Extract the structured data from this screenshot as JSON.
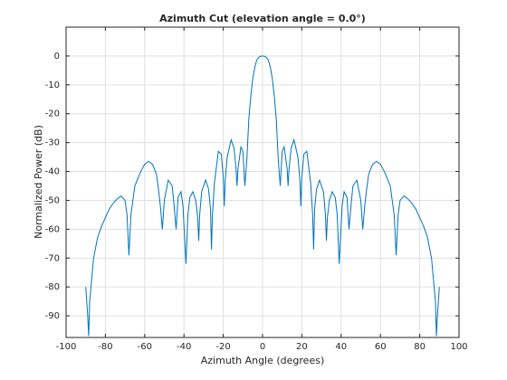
{
  "chart_data": {
    "type": "line",
    "title": "Azimuth Cut (elevation angle = 0.0°)",
    "x_label": "Azimuth Angle (degrees)",
    "y_label": "Normalized Power (dB)",
    "xlim": [
      -100,
      100
    ],
    "ylim": [
      -97.5,
      10
    ],
    "xticks": [
      -100,
      -80,
      -60,
      -40,
      -20,
      0,
      20,
      40,
      60,
      80,
      100
    ],
    "yticks": [
      -90,
      -80,
      -70,
      -60,
      -50,
      -40,
      -30,
      -20,
      -10,
      0
    ],
    "grid": true,
    "x": [
      -90,
      -89,
      -88.5,
      -88,
      -86,
      -84,
      -82,
      -80,
      -78,
      -76,
      -74,
      -72,
      -70,
      -69,
      -68,
      -67,
      -65,
      -62,
      -60,
      -58,
      -56,
      -54,
      -53,
      -52,
      -51,
      -50,
      -48,
      -46,
      -45,
      -44,
      -43,
      -41.5,
      -40.5,
      -39,
      -38,
      -37,
      -35.5,
      -34,
      -33,
      -32.5,
      -32,
      -31,
      -29,
      -27.5,
      -26.5,
      -26,
      -25.5,
      -24.5,
      -22.5,
      -21,
      -20,
      -19.5,
      -19,
      -18,
      -16,
      -14.5,
      -13.5,
      -13,
      -12.5,
      -11,
      -10,
      -9,
      -8,
      -7,
      -6,
      -5,
      -4,
      -3,
      -2,
      -1,
      0,
      1,
      2,
      3,
      4,
      5,
      6,
      7,
      8,
      9,
      10,
      11,
      12.5,
      13,
      13.5,
      14.5,
      16,
      18,
      19,
      19.5,
      20,
      21,
      22.5,
      24.5,
      25.5,
      26,
      26.5,
      27.5,
      29,
      31,
      32,
      32.5,
      33,
      34,
      35.5,
      37,
      38,
      39,
      40.5,
      41.5,
      43,
      44,
      45,
      46,
      48,
      50,
      51,
      52,
      53,
      54,
      56,
      58,
      60,
      62,
      65,
      67,
      68,
      69,
      70,
      72,
      74,
      76,
      78,
      80,
      82,
      84,
      86,
      88,
      88.5,
      89,
      90
    ],
    "series": [
      {
        "name": "Azimuth cut",
        "color": "#0072bd",
        "values": [
          -80,
          -90,
          -97,
          -85,
          -70,
          -63,
          -59,
          -56,
          -53,
          -51,
          -49.5,
          -48.5,
          -50,
          -55,
          -69,
          -55,
          -45,
          -40,
          -37.5,
          -36.5,
          -37.5,
          -41,
          -46,
          -52,
          -60,
          -50,
          -43,
          -45,
          -52,
          -60,
          -49,
          -47,
          -52,
          -72,
          -55,
          -49,
          -47,
          -50,
          -56,
          -64,
          -55,
          -47,
          -43,
          -46,
          -53,
          -67,
          -55,
          -44,
          -33,
          -34,
          -42,
          -52,
          -43,
          -35,
          -29,
          -32,
          -39,
          -45,
          -39,
          -31.5,
          -33,
          -45,
          -36,
          -22,
          -14,
          -8,
          -4,
          -1.5,
          -0.5,
          -0.1,
          0,
          -0.1,
          -0.5,
          -1.5,
          -4,
          -8,
          -14,
          -22,
          -36,
          -45,
          -33,
          -31.5,
          -39,
          -45,
          -39,
          -32,
          -29,
          -35,
          -43,
          -52,
          -42,
          -34,
          -33,
          -44,
          -55,
          -67,
          -53,
          -46,
          -43,
          -47,
          -55,
          -64,
          -56,
          -50,
          -47,
          -49,
          -55,
          -72,
          -52,
          -47,
          -49,
          -60,
          -52,
          -45,
          -43,
          -50,
          -60,
          -52,
          -46,
          -41,
          -37.5,
          -36.5,
          -37.5,
          -40,
          -45,
          -55,
          -69,
          -55,
          -50,
          -48.5,
          -49.5,
          -51,
          -53,
          -56,
          -59,
          -63,
          -70,
          -85,
          -97,
          -90,
          -80
        ]
      }
    ]
  }
}
